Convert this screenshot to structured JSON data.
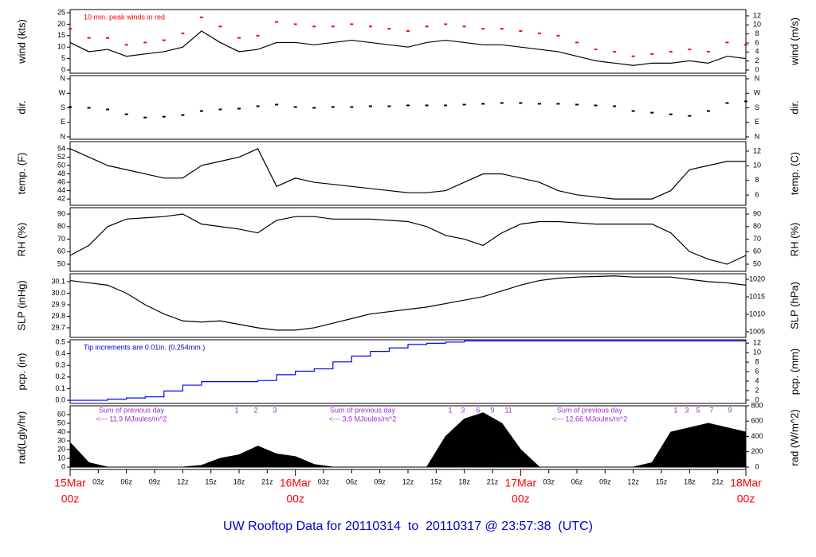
{
  "chart_data": [
    {
      "type": "line",
      "ylabel": "wind (kts)",
      "y2label": "wind (m/s)",
      "annotation": "10 min. peak winds in red",
      "ylim": [
        -1.4,
        26.4
      ],
      "yticks": [
        0,
        5,
        10,
        15,
        20,
        25
      ],
      "y2lim": [
        -0.7,
        13.4
      ],
      "y2ticks": [
        0,
        2,
        4,
        6,
        8,
        10,
        12
      ],
      "series": [
        {
          "color": "#000000",
          "values": [
            12,
            8,
            9,
            6,
            7,
            8,
            10,
            17,
            12,
            8,
            9,
            12,
            12,
            11,
            12,
            13,
            12,
            11,
            10,
            12,
            13,
            12,
            11,
            11,
            10,
            9,
            8,
            6,
            4,
            3,
            2,
            3,
            3,
            4,
            3,
            6,
            5
          ]
        },
        {
          "color": "#ff0000",
          "style": "points",
          "values": [
            18,
            14,
            14,
            11,
            12,
            13,
            16,
            23,
            19,
            14,
            15,
            21,
            20,
            19,
            19,
            20,
            19,
            18,
            17,
            19,
            20,
            19,
            18,
            18,
            17,
            16,
            15,
            12,
            9,
            8,
            6,
            7,
            8,
            9,
            8,
            12,
            11
          ]
        }
      ]
    },
    {
      "type": "scatter",
      "ylabel": "dir.",
      "y2label": "dir.",
      "ylim": [
        -15,
        380
      ],
      "yticks": [
        {
          "value": 0,
          "label": "N"
        },
        {
          "value": 90,
          "label": "E"
        },
        {
          "value": 180,
          "label": "S"
        },
        {
          "value": 270,
          "label": "W"
        },
        {
          "value": 360,
          "label": "N"
        }
      ],
      "y2lim": [
        -15,
        380
      ],
      "y2ticks": [
        {
          "value": 0,
          "label": "N"
        },
        {
          "value": 90,
          "label": "E"
        },
        {
          "value": 180,
          "label": "S"
        },
        {
          "value": 270,
          "label": "W"
        },
        {
          "value": 360,
          "label": "N"
        }
      ],
      "series": [
        {
          "color": "#000000",
          "values": [
            185,
            180,
            170,
            140,
            120,
            125,
            135,
            160,
            170,
            175,
            190,
            200,
            185,
            180,
            185,
            185,
            190,
            190,
            195,
            195,
            195,
            200,
            205,
            210,
            210,
            205,
            205,
            200,
            195,
            190,
            160,
            150,
            140,
            130,
            160,
            210,
            220
          ]
        }
      ]
    },
    {
      "type": "line",
      "ylabel": "temp. (F)",
      "y2label": "temp. (C)",
      "ylim": [
        40.5,
        55.7
      ],
      "yticks": [
        42,
        44,
        46,
        48,
        50,
        52,
        54
      ],
      "y2lim": [
        4.6,
        13.3
      ],
      "y2ticks": [
        6,
        8,
        10,
        12
      ],
      "series": [
        {
          "color": "#000000",
          "values": [
            54,
            52,
            50,
            49,
            48,
            47,
            47,
            50,
            51,
            52,
            54,
            45,
            47,
            46,
            45.5,
            45,
            44.5,
            44,
            43.5,
            43.5,
            44,
            46,
            48,
            48,
            47,
            46,
            44,
            43,
            42.5,
            42,
            42,
            42,
            44,
            49,
            50,
            51,
            51
          ]
        }
      ]
    },
    {
      "type": "line",
      "ylabel": "RH (%)",
      "y2label": "RH (%)",
      "ylim": [
        44.3,
        95.1
      ],
      "yticks": [
        50,
        60,
        70,
        80,
        90
      ],
      "y2lim": [
        44.3,
        95.1
      ],
      "y2ticks": [
        50,
        60,
        70,
        80,
        90
      ],
      "series": [
        {
          "color": "#000000",
          "values": [
            57,
            65,
            80,
            86,
            87,
            88,
            90,
            82,
            80,
            78,
            75,
            85,
            88,
            88,
            86,
            86,
            86,
            85,
            84,
            80,
            73,
            70,
            65,
            75,
            82,
            84,
            84,
            83,
            82,
            82,
            82,
            82,
            75,
            60,
            54,
            50,
            57
          ]
        }
      ]
    },
    {
      "type": "line",
      "ylabel": "SLP (inHg)",
      "y2label": "SLP (hPa)",
      "ylim": [
        29.617,
        30.169
      ],
      "yticks": [
        29.7,
        29.8,
        29.9,
        {
          "value": 30,
          "label": "30.0"
        },
        30.1
      ],
      "y2lim": [
        1003.4,
        1021.6
      ],
      "y2ticks": [
        1005,
        1010,
        1015,
        1020
      ],
      "series": [
        {
          "color": "#000000",
          "values": [
            30.11,
            30.09,
            30.07,
            30.0,
            29.9,
            29.82,
            29.76,
            29.75,
            29.76,
            29.73,
            29.7,
            29.68,
            29.68,
            29.7,
            29.74,
            29.78,
            29.82,
            29.84,
            29.86,
            29.88,
            29.91,
            29.94,
            29.97,
            30.02,
            30.07,
            30.11,
            30.13,
            30.14,
            30.145,
            30.15,
            30.14,
            30.14,
            30.14,
            30.12,
            30.1,
            30.09,
            30.07
          ]
        }
      ]
    },
    {
      "type": "line",
      "ylabel": "pcp. (in)",
      "y2label": "pcp. (mm)",
      "annotation": "Tip increments are 0.01in. (0.254mm.)",
      "step": true,
      "ylim": [
        -0.027,
        0.52
      ],
      "yticks": [
        {
          "value": 0,
          "label": "0.0"
        },
        0.1,
        0.2,
        0.3,
        0.4,
        0.5
      ],
      "y2lim": [
        -0.69,
        12.7
      ],
      "y2ticks": [
        0,
        2,
        4,
        6,
        8,
        10,
        12
      ],
      "series": [
        {
          "color": "#0000ff",
          "values": [
            0,
            0,
            0.01,
            0.02,
            0.03,
            0.08,
            0.13,
            0.16,
            0.16,
            0.16,
            0.17,
            0.22,
            0.25,
            0.27,
            0.33,
            0.38,
            0.42,
            0.45,
            0.48,
            0.49,
            0.5,
            0.51,
            0.51,
            0.51,
            0.51,
            0.51,
            0.51,
            0.51,
            0.51,
            0.51,
            0.51,
            0.51,
            0.51,
            0.51,
            0.51,
            0.51,
            0.51
          ]
        }
      ]
    },
    {
      "type": "area",
      "ylabel": "rad(Lgly/hr)",
      "y2label": "rad (W/m^2)",
      "ylim": [
        -2.7,
        70
      ],
      "yticks": [
        0,
        10,
        20,
        30,
        40,
        50,
        60
      ],
      "y2lim": [
        -31,
        800
      ],
      "y2ticks": [
        0,
        200,
        400,
        600,
        800
      ],
      "series": [
        {
          "color": "#000000",
          "values": [
            28,
            5,
            0,
            0,
            0,
            0,
            0,
            2,
            10,
            14,
            24,
            15,
            12,
            3,
            0,
            0,
            0,
            0,
            0,
            0,
            35,
            55,
            62,
            50,
            20,
            0,
            0,
            0,
            0,
            0,
            0,
            5,
            40,
            45,
            50,
            45,
            40
          ]
        }
      ],
      "daily_sums": [
        {
          "heading": "Sum of previous day",
          "text": "<--- 11.9 MJoules/m^2",
          "hours": [
            "1",
            "2",
            "3"
          ]
        },
        {
          "heading": "Sum of previous day",
          "text": "<--- 3.9 MJoules/m^2",
          "hours": [
            "1",
            "3",
            "6",
            "9",
            "11"
          ]
        },
        {
          "heading": "Sum of previous day",
          "text": "<--- 12.66 MJoules/m^2",
          "hours": [
            "1",
            "3",
            "5",
            "7",
            "9"
          ]
        }
      ]
    }
  ],
  "time_axis": {
    "xlim": [
      0,
      72
    ],
    "x": [
      0,
      2,
      4,
      6,
      8,
      10,
      12,
      14,
      16,
      18,
      20,
      22,
      24,
      26,
      28,
      30,
      32,
      34,
      36,
      38,
      40,
      42,
      44,
      46,
      48,
      50,
      52,
      54,
      56,
      58,
      60,
      62,
      64,
      66,
      68,
      70,
      72
    ],
    "xticks": [
      {
        "value": 3,
        "label": "03z"
      },
      {
        "value": 6,
        "label": "06z"
      },
      {
        "value": 9,
        "label": "09z"
      },
      {
        "value": 12,
        "label": "12z"
      },
      {
        "value": 15,
        "label": "15z"
      },
      {
        "value": 18,
        "label": "18z"
      },
      {
        "value": 21,
        "label": "21z"
      },
      {
        "value": 27,
        "label": "03z"
      },
      {
        "value": 30,
        "label": "06z"
      },
      {
        "value": 33,
        "label": "09z"
      },
      {
        "value": 36,
        "label": "12z"
      },
      {
        "value": 39,
        "label": "15z"
      },
      {
        "value": 42,
        "label": "18z"
      },
      {
        "value": 45,
        "label": "21z"
      },
      {
        "value": 51,
        "label": "03z"
      },
      {
        "value": 54,
        "label": "06z"
      },
      {
        "value": 57,
        "label": "09z"
      },
      {
        "value": 60,
        "label": "12z"
      },
      {
        "value": 63,
        "label": "15z"
      },
      {
        "value": 66,
        "label": "18z"
      },
      {
        "value": 69,
        "label": "21z"
      }
    ],
    "day_ticks": [
      {
        "value": 0,
        "label": "15Mar",
        "hour": "00z"
      },
      {
        "value": 24,
        "label": "16Mar",
        "hour": "00z"
      },
      {
        "value": 48,
        "label": "17Mar",
        "hour": "00z"
      },
      {
        "value": 72,
        "label": "18Mar",
        "hour": "00z"
      }
    ]
  },
  "footer": "UW Rooftop Data for 20110314  to  20110317 @ 23:57:38  (UTC)"
}
